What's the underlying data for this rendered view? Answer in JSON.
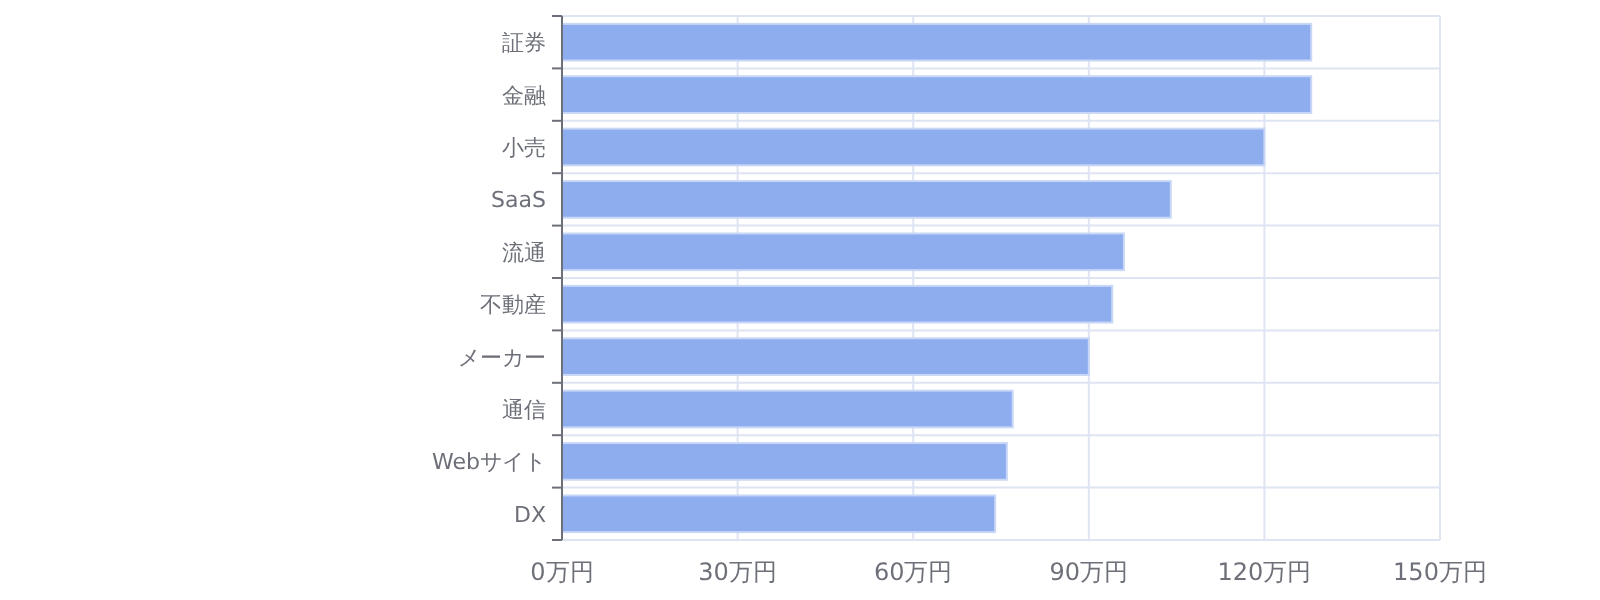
{
  "chart_data": {
    "type": "bar",
    "orientation": "horizontal",
    "categories": [
      "証券",
      "金融",
      "小売",
      "SaaS",
      "流通",
      "不動産",
      "メーカー",
      "通信",
      "Webサイト",
      "DX"
    ],
    "values": [
      128,
      128,
      120,
      104,
      96,
      94,
      90,
      77,
      76,
      74
    ],
    "color": "#8eadee",
    "xlim": [
      0,
      150
    ],
    "xticks": [
      {
        "value": 0,
        "label": "0万円"
      },
      {
        "value": 30,
        "label": "30万円"
      },
      {
        "value": 60,
        "label": "60万円"
      },
      {
        "value": 90,
        "label": "90万円"
      },
      {
        "value": 120,
        "label": "120万円"
      },
      {
        "value": 150,
        "label": "150万円"
      }
    ],
    "grid": true
  }
}
